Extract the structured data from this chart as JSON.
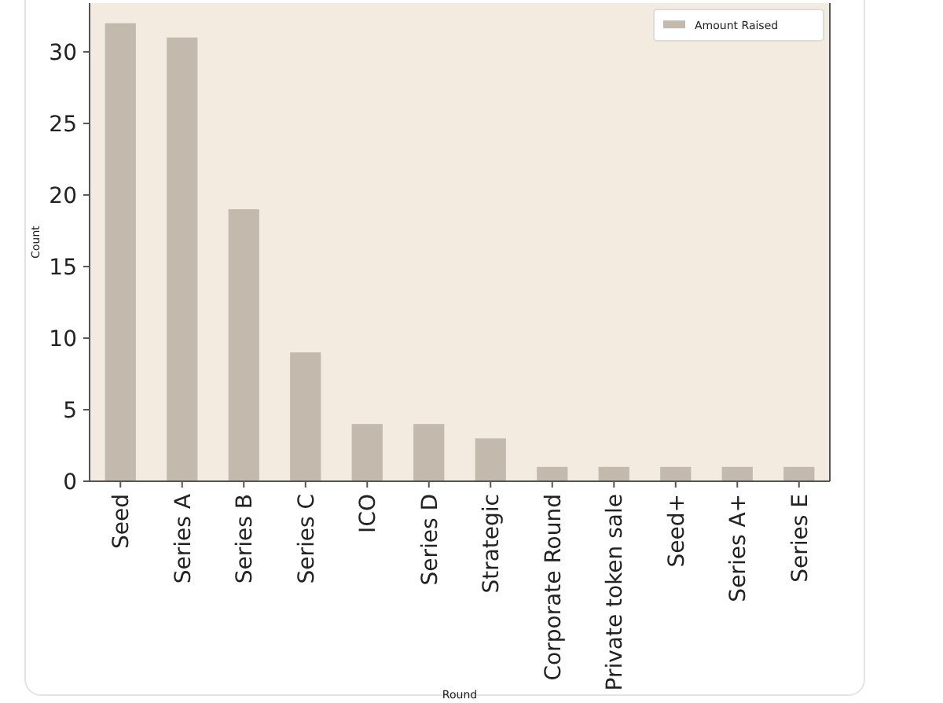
{
  "chart_data": {
    "type": "bar",
    "xlabel": "Round",
    "ylabel": "Count",
    "categories": [
      "Seed",
      "Series A",
      "Series B",
      "Series C",
      "ICO",
      "Series D",
      "Strategic",
      "Corporate Round",
      "Private token sale",
      "Seed+",
      "Series A+",
      "Series E"
    ],
    "series": [
      {
        "name": "Amount Raised",
        "color": "#c4b9ad",
        "values": [
          32,
          31,
          19,
          9,
          4,
          4,
          3,
          1,
          1,
          1,
          1,
          1
        ]
      }
    ],
    "ylim": [
      0,
      33.4
    ],
    "yticks": [
      0,
      5,
      10,
      15,
      20,
      25,
      30
    ],
    "grid": false,
    "legend": "top right"
  }
}
